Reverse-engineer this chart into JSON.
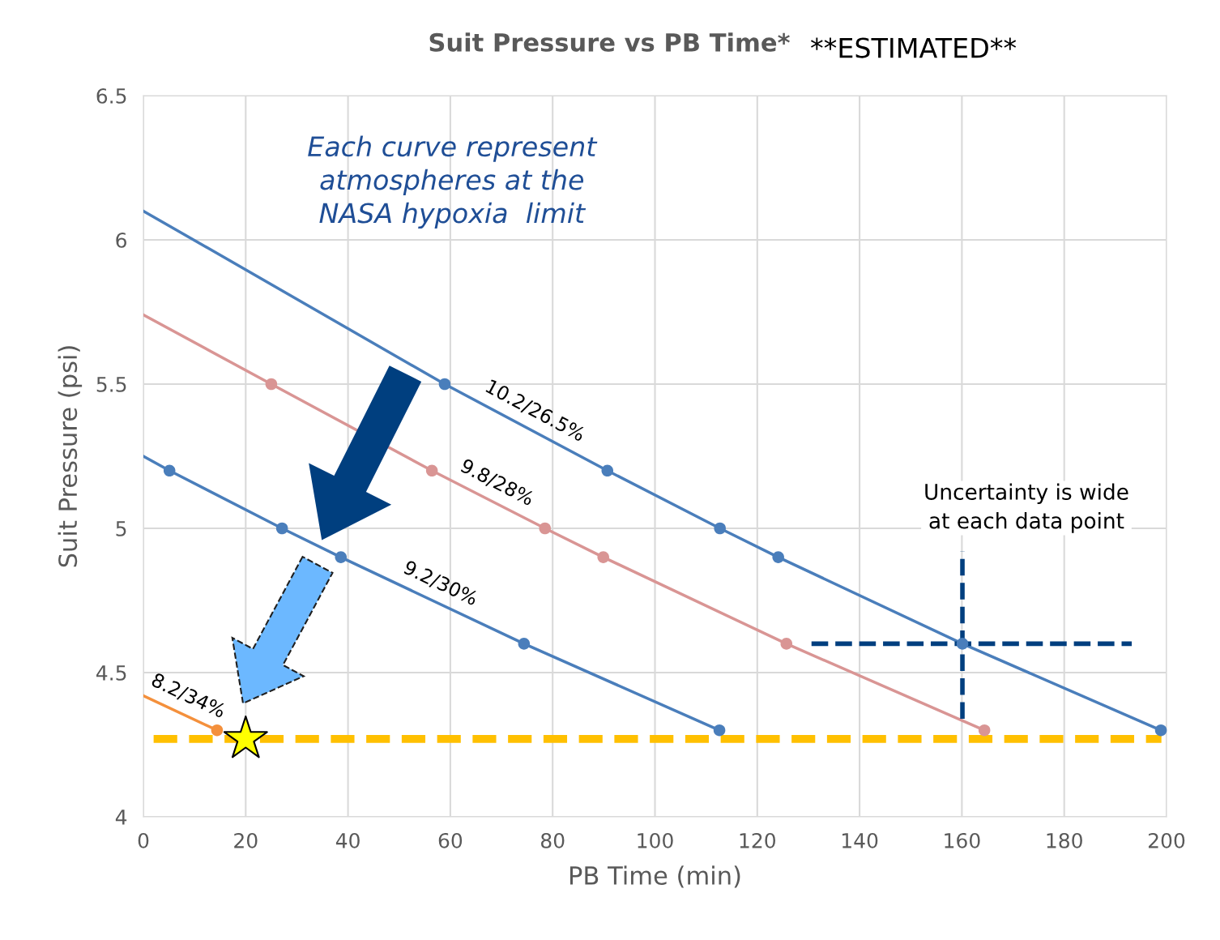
{
  "chart_data": {
    "type": "line",
    "title": "Suit Pressure vs PB Time*",
    "xlabel": "PB Time (min)",
    "ylabel": "Suit Pressure (psi)",
    "annotations": [
      "**ESTIMATED**",
      "Each curve represent\natmospheres at the\nNASA hypoxia  limit",
      "Uncertainty is wide\nat each data point"
    ],
    "series": [
      {
        "name": "10.2/26.5%",
        "marker": "none",
        "color": "#4a7ebb",
        "x": [
          0,
          58.9,
          90.7,
          112.7,
          124.1,
          160.1,
          198.9
        ],
        "values": [
          6.1,
          5.5,
          5.2,
          5.0,
          4.9,
          4.6,
          4.3
        ]
      },
      {
        "type": "scatter",
        "marker": "circle",
        "color": "#4a7ebb",
        "line_style": "dashed",
        "x": [
          58.9,
          90.7,
          112.7,
          124.1,
          160.1,
          198.9
        ],
        "values": [
          5.5,
          5.2,
          5.0,
          4.9,
          4.6,
          4.3
        ],
        "errors": [
          null,
          null,
          null,
          null,
          [
            4.34,
            4.92
          ],
          null
        ],
        "xerrors": [
          null,
          null,
          null,
          null,
          [
            130.6,
            193.2
          ],
          null
        ]
      },
      {
        "name": "9.8/28%",
        "marker": "none",
        "color": "#d99594",
        "x": [
          0,
          25.0,
          56.4,
          78.5,
          89.9,
          125.7,
          164.4
        ],
        "values": [
          5.74,
          5.5,
          5.2,
          5.0,
          4.9,
          4.6,
          4.3
        ]
      },
      {
        "type": "scatter",
        "marker": "circle",
        "color": "#d99594",
        "x": [
          25.0,
          56.4,
          78.5,
          89.9,
          125.7,
          164.4
        ],
        "values": [
          5.5,
          5.2,
          5.0,
          4.9,
          4.6,
          4.3
        ]
      },
      {
        "name": "9.2/30%",
        "marker": "none",
        "color": "#4a7ebb",
        "x": [
          0,
          5.1,
          27.1,
          38.6,
          74.4,
          112.6
        ],
        "values": [
          5.25,
          5.2,
          5.0,
          4.9,
          4.6,
          4.3
        ]
      },
      {
        "type": "scatter",
        "marker": "circle",
        "color": "#4a7ebb",
        "x": [
          5.1,
          27.1,
          38.6,
          74.4,
          112.6
        ],
        "values": [
          5.2,
          5.0,
          4.9,
          4.6,
          4.3
        ]
      },
      {
        "name": "8.2/34%",
        "marker": "none",
        "color": "#f4903c",
        "x": [
          0,
          14.4
        ],
        "values": [
          4.42,
          4.3
        ]
      },
      {
        "type": "scatter",
        "marker": "circle",
        "color": "#f4903c",
        "x": [
          14.4
        ],
        "values": [
          4.3
        ]
      },
      {
        "type": "scatter",
        "marker": "star",
        "color": "#ffff00",
        "x": [
          20
        ],
        "values": [
          4.27
        ]
      }
    ],
    "ref_lines": [
      {
        "axis": "y",
        "value": 4.27,
        "label": null,
        "color": "#ffc000",
        "line_style": "dashed"
      }
    ],
    "xlim": [
      0,
      200
    ],
    "xticks": [
      0,
      20,
      40,
      60,
      80,
      100,
      120,
      140,
      160,
      180,
      200
    ],
    "ylim": [
      4,
      6.5
    ],
    "yticks": [
      4,
      4.5,
      5,
      5.5,
      6,
      6.5
    ],
    "grid": true,
    "legend": false
  }
}
